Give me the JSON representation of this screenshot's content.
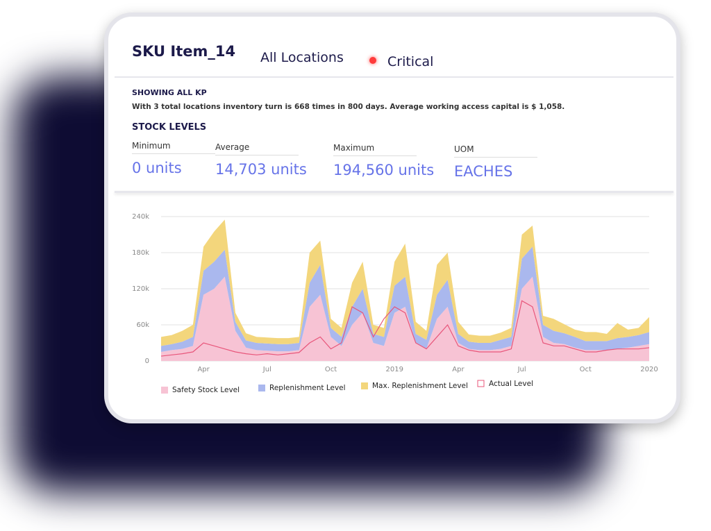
{
  "header": {
    "sku": "SKU Item_14",
    "location": "All Locations",
    "status": "Critical"
  },
  "kp": {
    "title": "SHOWING ALL KP",
    "text": "With 3 total locations inventory turn is 668 times in 800 days. Average working access capital is $ 1,058."
  },
  "stock": {
    "title": "STOCK LEVELS",
    "metrics": [
      {
        "label": "Minimum",
        "value": "0 units"
      },
      {
        "label": "Average",
        "value": "14,703 units"
      },
      {
        "label": "Maximum",
        "value": "194,560 units"
      },
      {
        "label": "UOM",
        "value": "EACHES"
      }
    ]
  },
  "chart_data": {
    "type": "area",
    "stacked": true,
    "grid": true,
    "categories": [
      "",
      "",
      "",
      "",
      "Apr",
      "",
      "",
      "",
      "",
      "",
      "Jul",
      "",
      "",
      "",
      "",
      "",
      "Oct",
      "",
      "",
      "",
      "",
      "",
      "2019",
      "",
      "",
      "",
      "",
      "",
      "Apr",
      "",
      "",
      "",
      "",
      "",
      "Jul",
      "",
      "",
      "",
      "",
      "",
      "Oct",
      "",
      "",
      "",
      "",
      "",
      "2020"
    ],
    "ylim": [
      0,
      240000
    ],
    "yticks": [
      0,
      {
        "value": 60000,
        "label": "60k"
      },
      {
        "value": 120000,
        "label": "120k"
      },
      {
        "value": 180000,
        "label": "180k"
      },
      {
        "value": 240000,
        "label": "240k"
      }
    ],
    "series": [
      {
        "name": "Safety Stock Level",
        "type": "area",
        "color": "#f7c3d4",
        "values": [
          15000,
          18000,
          20000,
          25000,
          110000,
          120000,
          140000,
          50000,
          22000,
          18000,
          17000,
          16000,
          16000,
          18000,
          90000,
          110000,
          40000,
          25000,
          60000,
          80000,
          30000,
          25000,
          80000,
          90000,
          30000,
          20000,
          70000,
          90000,
          30000,
          20000,
          18000,
          18000,
          20000,
          25000,
          120000,
          140000,
          40000,
          30000,
          28000,
          22000,
          18000,
          18000,
          18000,
          20000,
          22000,
          25000,
          28000
        ]
      },
      {
        "name": "Replenishment Level",
        "type": "area",
        "color": "#aab8ee",
        "values": [
          10000,
          10000,
          12000,
          15000,
          40000,
          45000,
          45000,
          15000,
          12000,
          12000,
          12000,
          12000,
          12000,
          12000,
          40000,
          50000,
          15000,
          15000,
          30000,
          40000,
          15000,
          15000,
          45000,
          50000,
          15000,
          15000,
          40000,
          45000,
          15000,
          12000,
          12000,
          12000,
          15000,
          15000,
          50000,
          50000,
          20000,
          20000,
          18000,
          18000,
          15000,
          15000,
          15000,
          18000,
          18000,
          18000,
          20000
        ]
      },
      {
        "name": "Max. Replenishment Level",
        "type": "area",
        "color": "#f3d67c",
        "values": [
          15000,
          15000,
          18000,
          20000,
          40000,
          50000,
          50000,
          15000,
          12000,
          10000,
          10000,
          10000,
          10000,
          10000,
          50000,
          40000,
          15000,
          15000,
          40000,
          45000,
          15000,
          15000,
          40000,
          55000,
          20000,
          15000,
          50000,
          45000,
          20000,
          12000,
          12000,
          12000,
          12000,
          15000,
          40000,
          35000,
          15000,
          20000,
          15000,
          12000,
          15000,
          15000,
          12000,
          25000,
          12000,
          12000,
          25000
        ]
      },
      {
        "name": "Actual Level",
        "type": "line",
        "color": "#e8557a",
        "values": [
          8000,
          10000,
          12000,
          15000,
          30000,
          25000,
          20000,
          15000,
          12000,
          10000,
          12000,
          10000,
          12000,
          14000,
          30000,
          40000,
          20000,
          30000,
          90000,
          80000,
          40000,
          70000,
          90000,
          80000,
          30000,
          20000,
          40000,
          60000,
          25000,
          18000,
          15000,
          15000,
          15000,
          20000,
          100000,
          90000,
          30000,
          25000,
          25000,
          20000,
          15000,
          15000,
          18000,
          20000,
          20000,
          20000,
          22000
        ]
      }
    ]
  }
}
